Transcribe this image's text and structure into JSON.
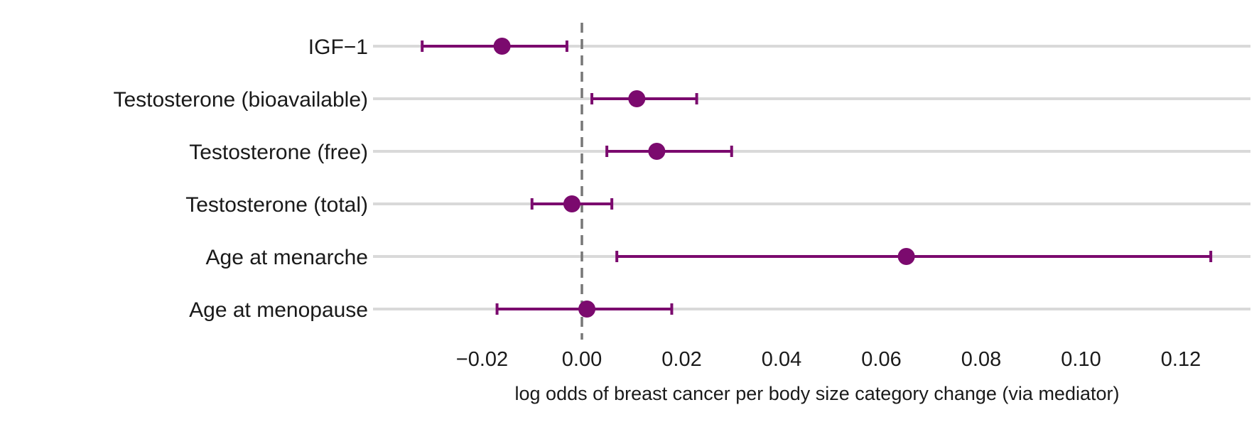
{
  "chart_data": {
    "type": "forest",
    "title": "",
    "xlabel": "log odds of breast cancer per body size category change (via mediator)",
    "ylabel": "",
    "xlim": [
      -0.042,
      0.134
    ],
    "xticks": [
      {
        "value": -0.02,
        "label": "−0.02"
      },
      {
        "value": 0.0,
        "label": "0.00"
      },
      {
        "value": 0.02,
        "label": "0.02"
      },
      {
        "value": 0.04,
        "label": "0.04"
      },
      {
        "value": 0.06,
        "label": "0.06"
      },
      {
        "value": 0.08,
        "label": "0.08"
      },
      {
        "value": 0.1,
        "label": "0.10"
      },
      {
        "value": 0.12,
        "label": "0.12"
      }
    ],
    "reference_line": 0,
    "grid": true,
    "color": "#7b0a6e",
    "rows": [
      {
        "label": "IGF−1",
        "estimate": -0.016,
        "lower": -0.032,
        "upper": -0.003
      },
      {
        "label": "Testosterone (bioavailable)",
        "estimate": 0.011,
        "lower": 0.002,
        "upper": 0.023
      },
      {
        "label": "Testosterone (free)",
        "estimate": 0.015,
        "lower": 0.005,
        "upper": 0.03
      },
      {
        "label": "Testosterone (total)",
        "estimate": -0.002,
        "lower": -0.01,
        "upper": 0.006
      },
      {
        "label": "Age at menarche",
        "estimate": 0.065,
        "lower": 0.007,
        "upper": 0.126
      },
      {
        "label": "Age at menopause",
        "estimate": 0.001,
        "lower": -0.017,
        "upper": 0.018
      }
    ]
  }
}
